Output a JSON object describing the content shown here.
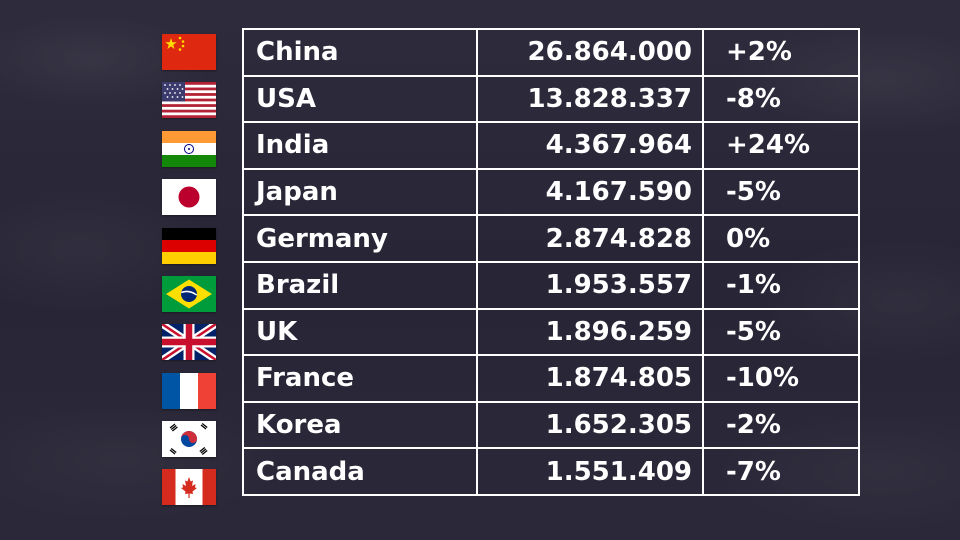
{
  "rows": [
    {
      "country": "China",
      "value": "26.864.000",
      "change": "+2%",
      "flag": "china-flag-icon"
    },
    {
      "country": "USA",
      "value": "13.828.337",
      "change": "-8%",
      "flag": "usa-flag-icon"
    },
    {
      "country": "India",
      "value": "4.367.964",
      "change": "+24%",
      "flag": "india-flag-icon"
    },
    {
      "country": "Japan",
      "value": "4.167.590",
      "change": "-5%",
      "flag": "japan-flag-icon"
    },
    {
      "country": "Germany",
      "value": "2.874.828",
      "change": "0%",
      "flag": "germany-flag-icon"
    },
    {
      "country": "Brazil",
      "value": "1.953.557",
      "change": "-1%",
      "flag": "brazil-flag-icon"
    },
    {
      "country": "UK",
      "value": "1.896.259",
      "change": "-5%",
      "flag": "uk-flag-icon"
    },
    {
      "country": "France",
      "value": "1.874.805",
      "change": "-10%",
      "flag": "france-flag-icon"
    },
    {
      "country": "Korea",
      "value": "1.652.305",
      "change": "-2%",
      "flag": "korea-flag-icon"
    },
    {
      "country": "Canada",
      "value": "1.551.409",
      "change": "-7%",
      "flag": "canada-flag-icon"
    }
  ],
  "colors": {
    "background": "#2a2838",
    "text": "#ffffff",
    "grid": "#ffffff"
  }
}
